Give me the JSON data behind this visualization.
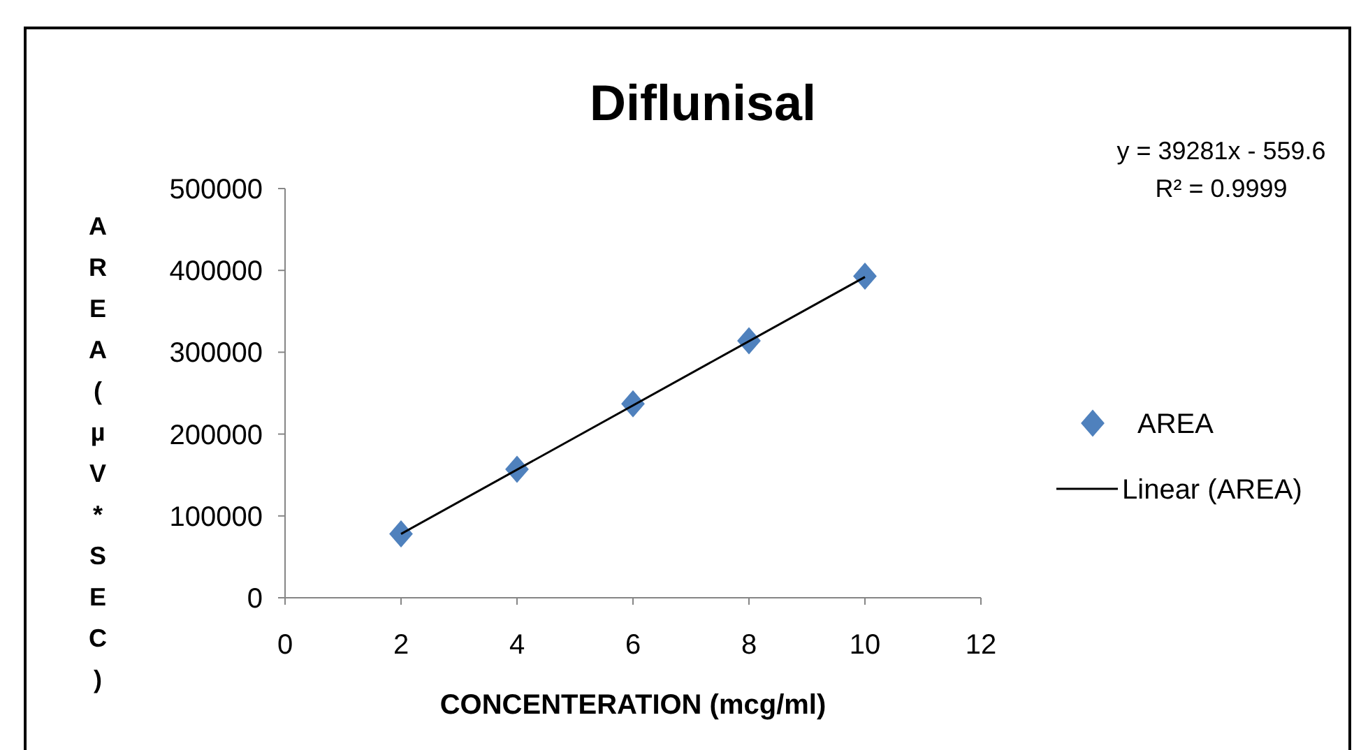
{
  "chart_data": {
    "type": "scatter",
    "title": "Diflunisal",
    "xlabel": "CONCENTERATION (mcg/ml)",
    "ylabel": "AREA (µV*SEC)",
    "x": [
      2,
      4,
      6,
      8,
      10
    ],
    "series": [
      {
        "name": "AREA",
        "color": "#4f81bd",
        "marker": "diamond",
        "values": [
          78000,
          157000,
          237000,
          314000,
          393000
        ]
      },
      {
        "name": "Linear (AREA)",
        "type": "line",
        "color": "#000000",
        "x": [
          2,
          10
        ],
        "values": [
          78000,
          392000
        ],
        "line_style": "solid",
        "marker": "none"
      }
    ],
    "xlim": [
      0,
      12
    ],
    "xticks": [
      0,
      2,
      4,
      6,
      8,
      10,
      12
    ],
    "ylim": [
      0,
      500000
    ],
    "yticks": [
      0,
      100000,
      200000,
      300000,
      400000,
      500000
    ],
    "annotations": [
      "y = 39281x - 559.6",
      "R² = 0.9999"
    ],
    "legend": "right",
    "grid": false
  }
}
